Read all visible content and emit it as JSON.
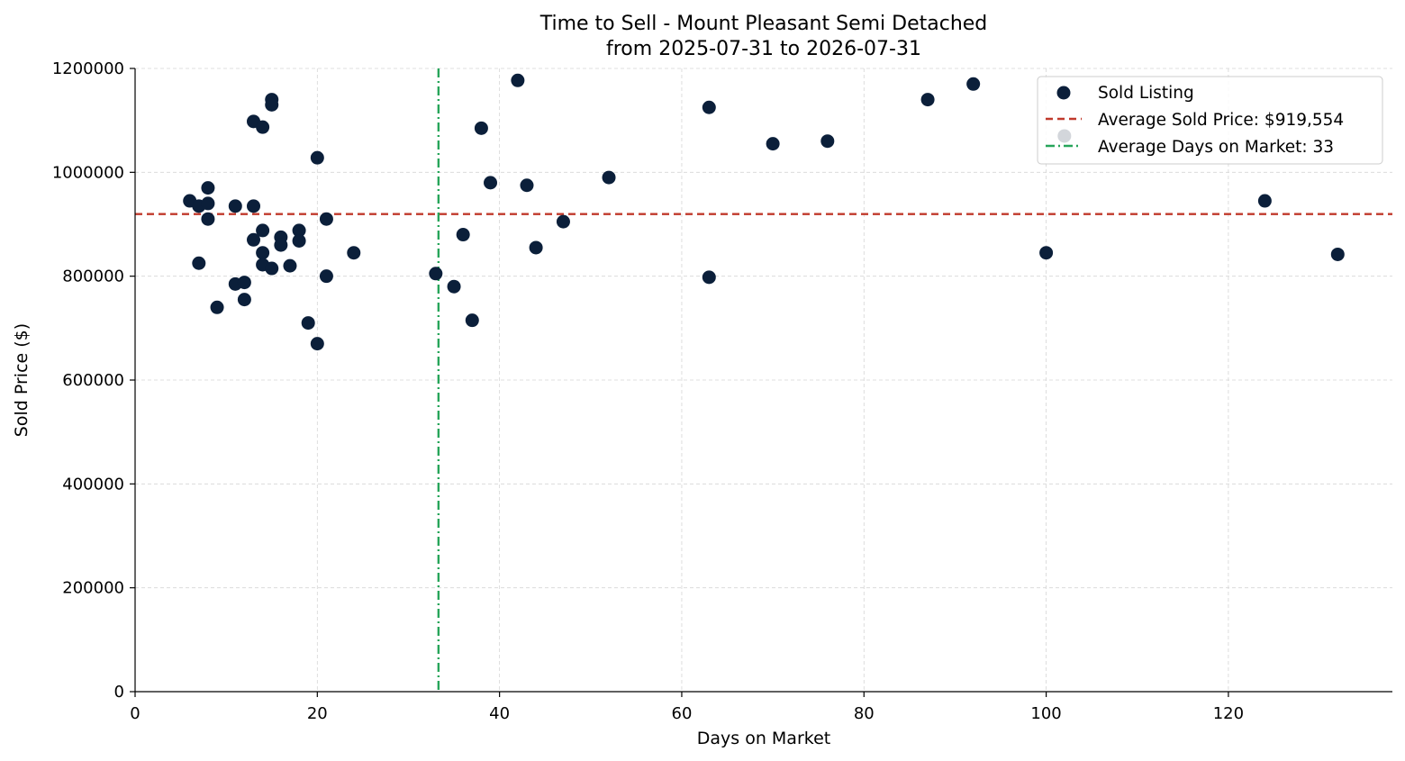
{
  "chart_data": {
    "type": "scatter",
    "title": "Time to Sell - Mount Pleasant Semi Detached",
    "subtitle": "from 2025-07-31 to 2026-07-31",
    "xlabel": "Days on Market",
    "ylabel": "Sold Price ($)",
    "xlim": [
      0,
      138
    ],
    "ylim": [
      0,
      1200000
    ],
    "x_ticks": [
      0,
      20,
      40,
      60,
      80,
      100,
      120
    ],
    "y_ticks": [
      0,
      200000,
      400000,
      600000,
      800000,
      1000000,
      1200000
    ],
    "grid": true,
    "legend_position": "top-right",
    "colors": {
      "points": "#0b1f3a",
      "avg_price_line": "#c0392b",
      "avg_days_line": "#27a55a"
    },
    "series": [
      {
        "name": "Sold Listing",
        "points": [
          [
            6,
            945000
          ],
          [
            7,
            935000
          ],
          [
            7,
            825000
          ],
          [
            8,
            970000
          ],
          [
            8,
            940000
          ],
          [
            8,
            910000
          ],
          [
            9,
            740000
          ],
          [
            11,
            935000
          ],
          [
            11,
            785000
          ],
          [
            12,
            788000
          ],
          [
            12,
            755000
          ],
          [
            13,
            1098000
          ],
          [
            13,
            935000
          ],
          [
            13,
            870000
          ],
          [
            14,
            1087000
          ],
          [
            14,
            888000
          ],
          [
            14,
            845000
          ],
          [
            14,
            822000
          ],
          [
            15,
            1140000
          ],
          [
            15,
            1130000
          ],
          [
            15,
            815000
          ],
          [
            16,
            875000
          ],
          [
            16,
            860000
          ],
          [
            17,
            820000
          ],
          [
            18,
            888000
          ],
          [
            18,
            868000
          ],
          [
            19,
            710000
          ],
          [
            20,
            1028000
          ],
          [
            20,
            670000
          ],
          [
            21,
            910000
          ],
          [
            21,
            800000
          ],
          [
            24,
            845000
          ],
          [
            33,
            805000
          ],
          [
            35,
            780000
          ],
          [
            36,
            880000
          ],
          [
            37,
            715000
          ],
          [
            38,
            1085000
          ],
          [
            39,
            980000
          ],
          [
            42,
            1177000
          ],
          [
            43,
            975000
          ],
          [
            44,
            855000
          ],
          [
            47,
            905000
          ],
          [
            52,
            990000
          ],
          [
            63,
            1125000
          ],
          [
            63,
            798000
          ],
          [
            70,
            1055000
          ],
          [
            76,
            1060000
          ],
          [
            87,
            1140000
          ],
          [
            92,
            1170000
          ],
          [
            100,
            845000
          ],
          [
            102,
            1070000
          ],
          [
            124,
            945000
          ],
          [
            132,
            842000
          ]
        ]
      }
    ],
    "reference_lines": {
      "avg_price": {
        "label": "Average Sold Price: $919,554",
        "value": 919554
      },
      "avg_days": {
        "label": "Average Days on Market: 33",
        "value": 33.3
      }
    }
  }
}
